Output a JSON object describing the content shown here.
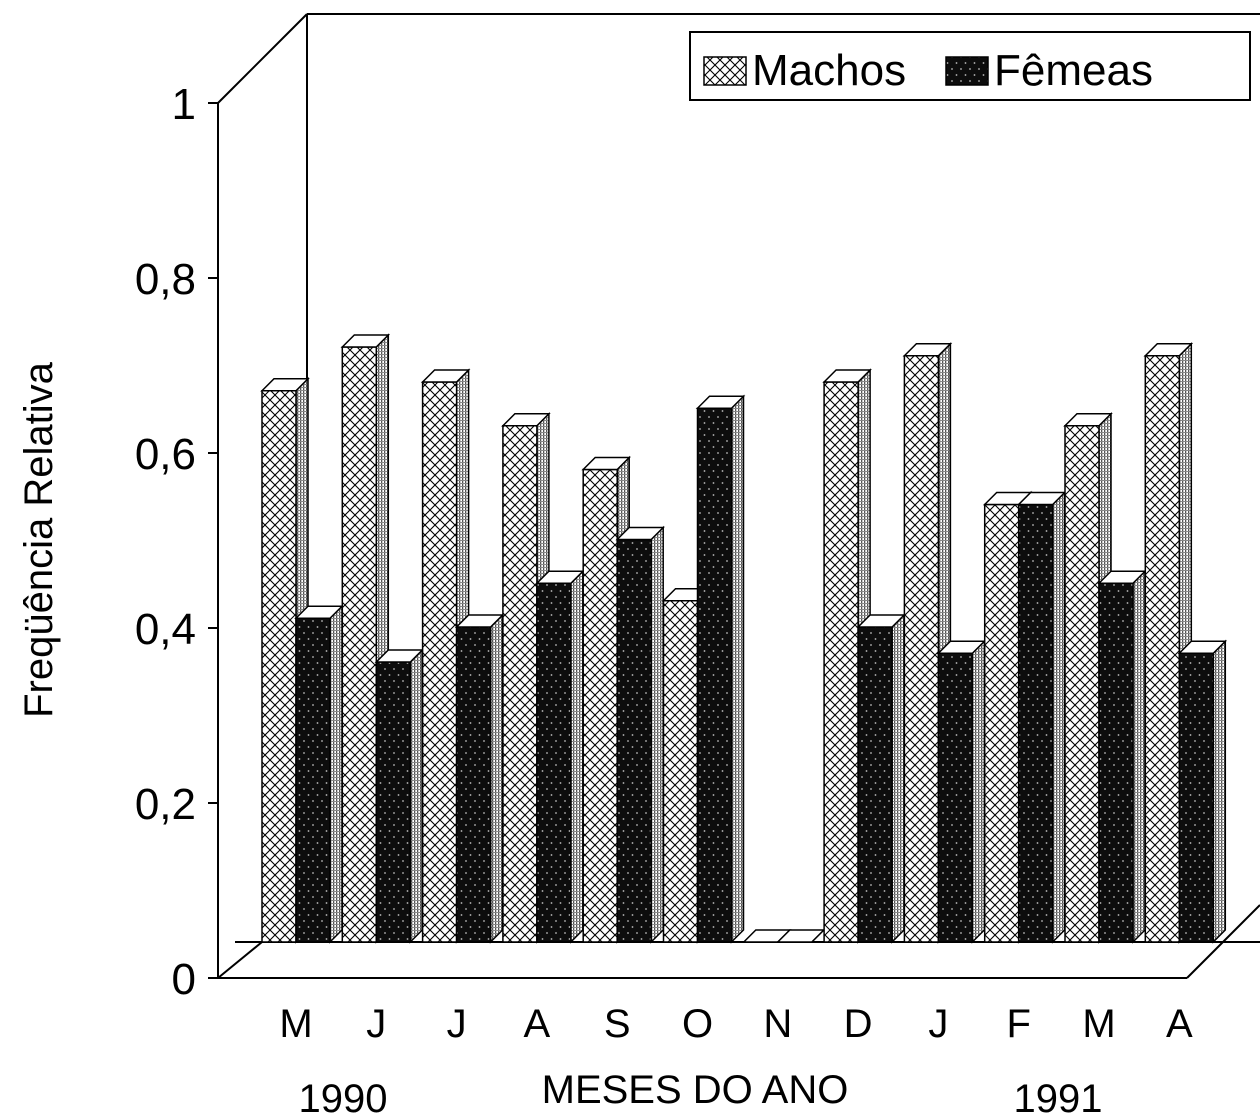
{
  "chart_data": {
    "type": "bar",
    "xlabel": "MESES DO ANO",
    "ylabel": "Freqüência Relativa",
    "ylim": [
      0,
      1
    ],
    "yticks": [
      "0",
      "0,2",
      "0,4",
      "0,6",
      "0,8",
      "1"
    ],
    "categories": [
      "M",
      "J",
      "J",
      "A",
      "S",
      "O",
      "N",
      "D",
      "J",
      "F",
      "M",
      "A"
    ],
    "year_labels": [
      "1990",
      "1991"
    ],
    "legend_position": "top-right",
    "series": [
      {
        "name": "Machos",
        "pattern": "crosshatch",
        "color": "#ffffff",
        "values": [
          0.63,
          0.68,
          0.64,
          0.59,
          0.54,
          0.39,
          0.0,
          0.64,
          0.67,
          0.5,
          0.59,
          0.67
        ]
      },
      {
        "name": "Fêmeas",
        "pattern": "dotted-dark",
        "color": "#111111",
        "values": [
          0.37,
          0.32,
          0.36,
          0.41,
          0.46,
          0.61,
          0.0,
          0.36,
          0.33,
          0.5,
          0.41,
          0.33
        ]
      }
    ]
  }
}
